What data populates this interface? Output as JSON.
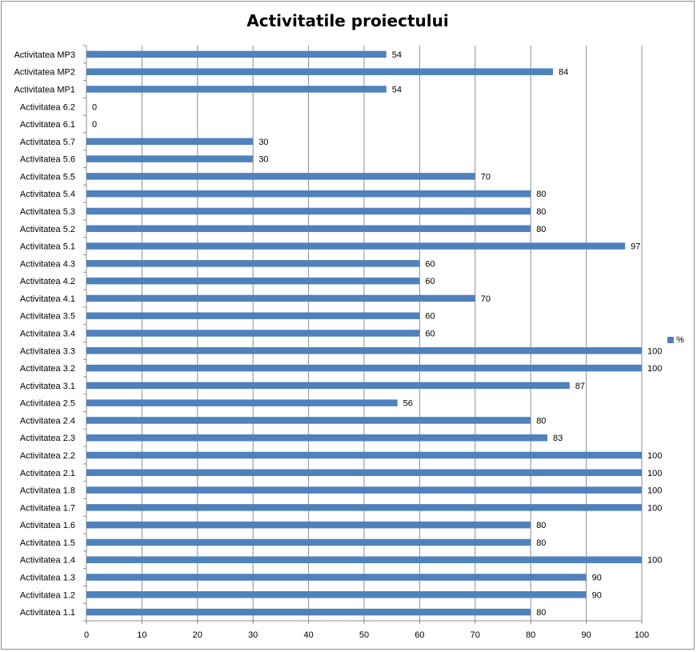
{
  "chart_data": {
    "type": "bar",
    "orientation": "horizontal",
    "title": "Activitatile proiectului",
    "xlabel": "",
    "ylabel": "",
    "xlim": [
      0,
      100
    ],
    "x_ticks": [
      0,
      10,
      20,
      30,
      40,
      50,
      60,
      70,
      80,
      90,
      100
    ],
    "grid": true,
    "legend_position": "right",
    "series_color": "#4f81bd",
    "categories": [
      "Activitatea MP3",
      "Activitatea MP2",
      "Activitatea MP1",
      "Activitatea 6.2",
      "Activitatea 6.1",
      "Activitatea 5.7",
      "Activitatea 5.6",
      "Activitatea 5.5",
      "Activitatea 5.4",
      "Activitatea 5.3",
      "Activitatea 5.2",
      "Activitatea 5.1",
      "Activitatea 4.3",
      "Activitatea 4.2",
      "Activitatea 4.1",
      "Activitatea 3.5",
      "Activitatea 3.4",
      "Activitatea 3.3",
      "Activitatea 3.2",
      "Activitatea 3.1",
      "Activitatea 2.5",
      "Activitatea 2.4",
      "Activitatea 2.3",
      "Activitatea 2.2",
      "Activitatea 2.1",
      "Activitatea 1.8",
      "Activitatea 1.7",
      "Activitatea 1.6",
      "Activitatea 1.5",
      "Activitatea 1.4",
      "Activitatea 1.3",
      "Activitatea 1.2",
      "Activitatea 1.1"
    ],
    "series": [
      {
        "name": "%",
        "values": [
          54,
          84,
          54,
          0,
          0,
          30,
          30,
          70,
          80,
          80,
          80,
          97,
          60,
          60,
          70,
          60,
          60,
          100,
          100,
          87,
          56,
          80,
          83,
          100,
          100,
          100,
          100,
          80,
          80,
          100,
          90,
          90,
          80
        ]
      }
    ]
  }
}
